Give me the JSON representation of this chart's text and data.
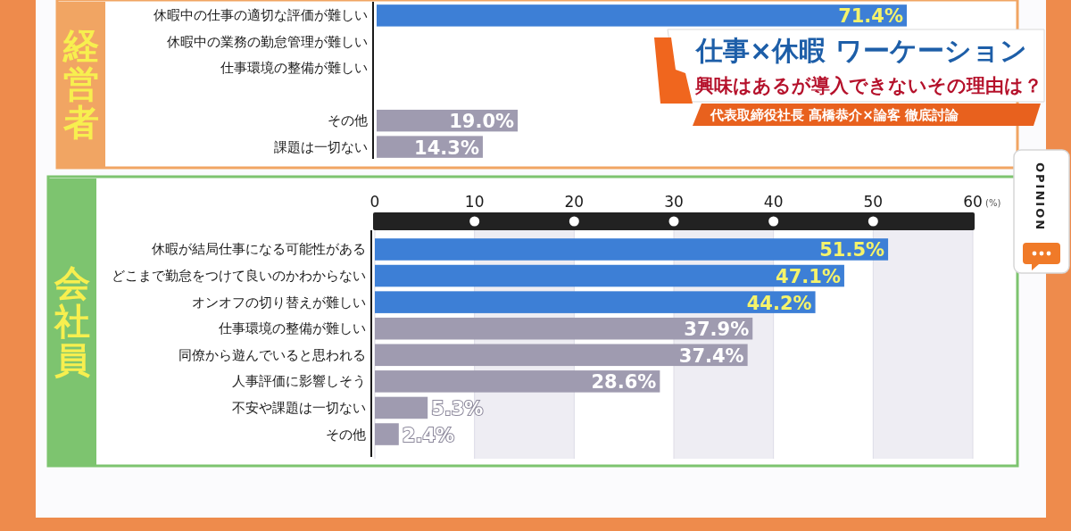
{
  "chart_data": [
    {
      "type": "bar",
      "orientation": "horizontal",
      "title": "仕事×休暇 ワーケーション",
      "subtitle": "興味はあるが導入できないその理由は？",
      "ylabel": "経営者",
      "annotations": [
        "代表取締役社長 髙橋恭介×論客 徹底討論"
      ],
      "categories": [
        "休暇中の仕事の適切な評価が難しい",
        "休暇中の業務の勤怠管理が難しい",
        "仕事環境の整備が難しい",
        null,
        "その他",
        "課題は一切ない"
      ],
      "values": [
        71.4,
        null,
        null,
        null,
        19.0,
        14.3
      ],
      "colors": [
        "#3d7fd6",
        null,
        null,
        null,
        "#9f9bb0",
        "#9f9bb0"
      ],
      "value_labels": [
        "71.4%",
        null,
        null,
        null,
        "19.0%",
        "14.3%"
      ],
      "tick_labels": "y"
    },
    {
      "type": "bar",
      "orientation": "horizontal",
      "ylabel": "会社員",
      "xlabel": "(%)",
      "annotations": [
        "OPINION"
      ],
      "categories": [
        "休暇が結局仕事になる可能性がある",
        "どこまで勤怠をつけて良いのかわからない",
        "オンオフの切り替えが難しい",
        "仕事環境の整備が難しい",
        "同僚から遊んでいると思われる",
        "人事評価に影響しそう",
        "不安や課題は一切ない",
        "その他"
      ],
      "values": [
        51.5,
        47.1,
        44.2,
        37.9,
        37.4,
        28.6,
        5.3,
        2.4
      ],
      "colors": [
        "#3d7fd6",
        "#3d7fd6",
        "#3d7fd6",
        "#9f9bb0",
        "#9f9bb0",
        "#9f9bb0",
        "#9f9bb0",
        "#9f9bb0"
      ],
      "value_labels": [
        "51.5%",
        "47.1%",
        "44.2%",
        "37.9%",
        "37.4%",
        "28.6%",
        "5.3%",
        "2.4%"
      ],
      "xlim": [
        0,
        60
      ],
      "xticks": [
        0,
        10,
        20,
        30,
        40,
        50,
        60
      ],
      "grid": "x"
    }
  ]
}
